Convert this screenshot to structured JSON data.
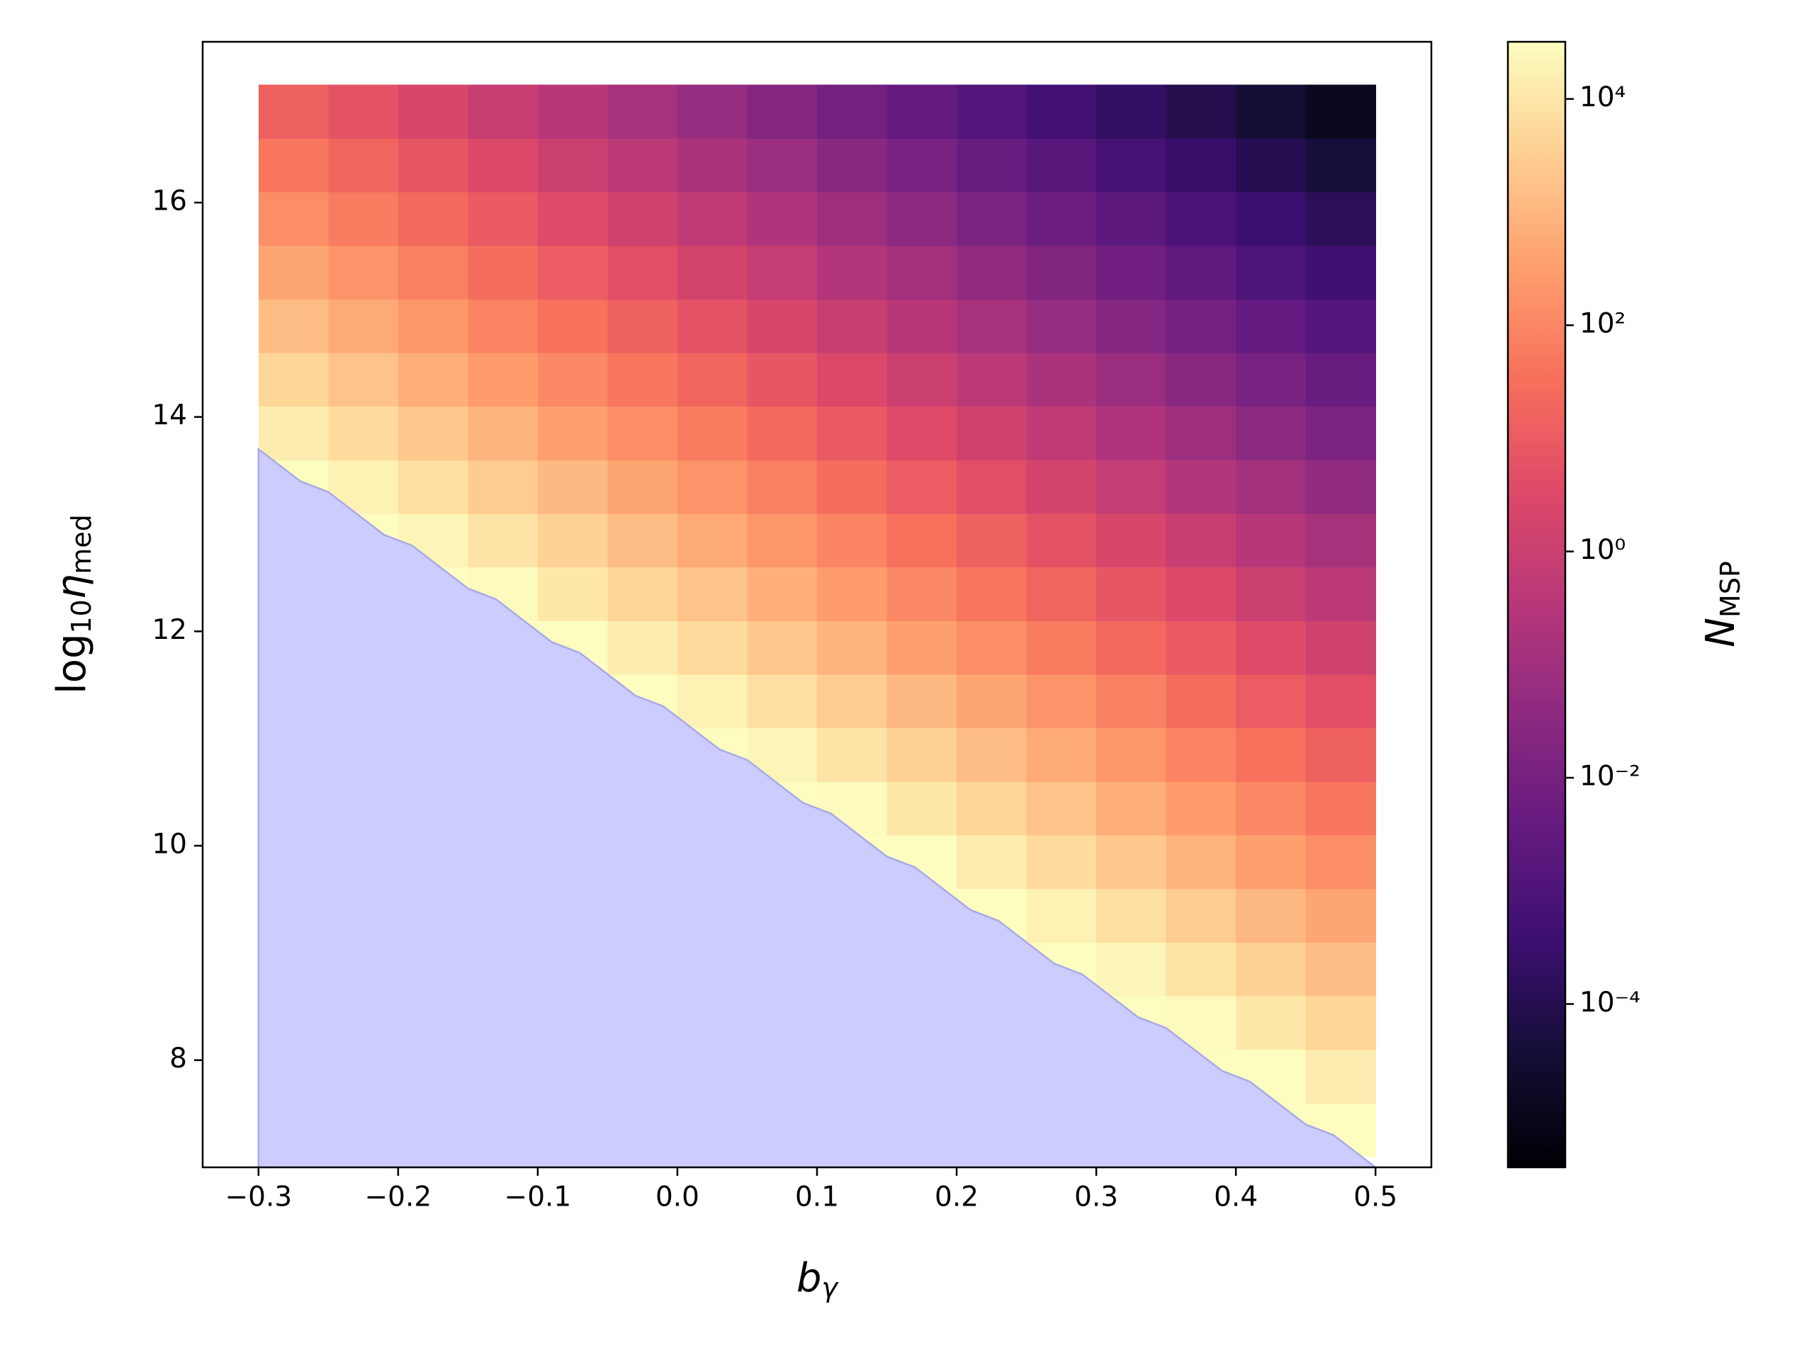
{
  "chart_data": {
    "type": "heatmap",
    "xlabel": {
      "symbol": "b",
      "subscript": "γ"
    },
    "ylabel": {
      "prefix": "log",
      "prefix_subscript": "10",
      "symbol": "η",
      "subscript": "med"
    },
    "colorbar_label": {
      "symbol": "N",
      "subscript": "MSP"
    },
    "colormap": "magma",
    "log_color_scale": true,
    "clim": [
      3.6e-06,
      32000.0
    ],
    "colorbar_ticks": [
      {
        "value": 0.0001,
        "label": "10⁻⁴"
      },
      {
        "value": 0.01,
        "label": "10⁻²"
      },
      {
        "value": 1,
        "label": "10⁰"
      },
      {
        "value": 100,
        "label": "10²"
      },
      {
        "value": 10000,
        "label": "10⁴"
      }
    ],
    "xlim": [
      -0.34,
      0.54
    ],
    "ylim": [
      7.0,
      17.5
    ],
    "xticks": [
      {
        "value": -0.3,
        "label": "−0.3"
      },
      {
        "value": -0.2,
        "label": "−0.2"
      },
      {
        "value": -0.1,
        "label": "−0.1"
      },
      {
        "value": 0,
        "label": "0.0"
      },
      0.1,
      0.2,
      0.3,
      0.4,
      0.5
    ],
    "yticks": [
      8,
      10,
      12,
      14,
      16
    ],
    "x_edges": [
      -0.3,
      -0.25,
      -0.2,
      -0.15,
      -0.1,
      -0.05,
      0,
      0.05,
      0.1,
      0.15,
      0.2,
      0.25,
      0.3,
      0.35,
      0.4,
      0.45,
      0.5
    ],
    "y_edges": [
      7.1,
      7.6,
      8.1,
      8.6,
      9.1,
      9.6,
      10.1,
      10.6,
      11.1,
      11.6,
      12.1,
      12.6,
      13.1,
      13.6,
      14.1,
      14.6,
      15.1,
      15.6,
      16.1,
      16.6,
      17.1
    ],
    "z": [
      [
        null,
        null,
        null,
        null,
        null,
        null,
        null,
        null,
        null,
        null,
        null,
        null,
        null,
        null,
        110000.0,
        45000.0
      ],
      [
        null,
        null,
        null,
        null,
        null,
        null,
        null,
        null,
        null,
        null,
        null,
        null,
        null,
        89000.0,
        35000.0,
        14000.0
      ],
      [
        null,
        null,
        null,
        null,
        null,
        null,
        null,
        null,
        null,
        null,
        null,
        null,
        71000.0,
        28000.0,
        11000.0,
        4500.0
      ],
      [
        null,
        null,
        null,
        null,
        null,
        null,
        null,
        null,
        null,
        null,
        null,
        56000.0,
        22000.0,
        8900.0,
        3500.0,
        1400.0
      ],
      [
        null,
        null,
        null,
        null,
        null,
        null,
        null,
        null,
        null,
        110000.0,
        45000.0,
        18000.0,
        7100.0,
        2800.0,
        1100.0,
        450
      ],
      [
        null,
        null,
        null,
        null,
        null,
        null,
        null,
        null,
        89000.0,
        35000.0,
        14000.0,
        5600.0,
        2200.0,
        890,
        350,
        140
      ],
      [
        null,
        null,
        null,
        null,
        null,
        null,
        null,
        71000.0,
        28000.0,
        11000.0,
        4500.0,
        1800.0,
        710,
        280,
        110,
        45
      ],
      [
        null,
        null,
        null,
        null,
        null,
        null,
        56000.0,
        22000.0,
        8900.0,
        3500.0,
        1400.0,
        560,
        220,
        89,
        35,
        14
      ],
      [
        null,
        null,
        null,
        null,
        110000.0,
        45000.0,
        18000.0,
        7100.0,
        2800.0,
        1100.0,
        450,
        180,
        71,
        28,
        11,
        4.5
      ],
      [
        null,
        null,
        null,
        89000.0,
        35000.0,
        14000.0,
        5600.0,
        2200.0,
        890,
        350,
        140,
        56,
        22,
        8.9,
        3.5,
        1.4
      ],
      [
        null,
        null,
        71000.0,
        28000.0,
        11000.0,
        4500.0,
        1800.0,
        710,
        280,
        110,
        45,
        18,
        7.1,
        2.8,
        1.1,
        0.45
      ],
      [
        null,
        56000.0,
        22000.0,
        8900.0,
        3500.0,
        1400.0,
        560,
        220,
        89,
        35,
        14,
        5.6,
        2.2,
        0.89,
        0.35,
        0.14
      ],
      [
        45000.0,
        18000.0,
        7100.0,
        2800.0,
        1100.0,
        450,
        180,
        71,
        28,
        11,
        4.5,
        1.8,
        0.71,
        0.28,
        0.11,
        0.045
      ],
      [
        14000.0,
        5600.0,
        2200.0,
        890,
        350,
        140,
        56,
        22,
        8.9,
        3.5,
        1.4,
        0.56,
        0.22,
        0.089,
        0.035,
        0.014
      ],
      [
        4500.0,
        1800.0,
        710,
        280,
        110,
        45,
        18,
        7.1,
        2.8,
        1.1,
        0.45,
        0.18,
        0.071,
        0.028,
        0.011,
        0.0045
      ],
      [
        1400.0,
        560,
        220,
        89,
        35,
        14,
        5.6,
        2.2,
        0.89,
        0.35,
        0.14,
        0.056,
        0.022,
        0.0089,
        0.0035,
        0.0014
      ],
      [
        450,
        180,
        71,
        28,
        11,
        4.5,
        1.8,
        0.71,
        0.28,
        0.11,
        0.045,
        0.018,
        0.0071,
        0.0028,
        0.0011,
        0.00045
      ],
      [
        140,
        56,
        22,
        8.9,
        3.5,
        1.4,
        0.56,
        0.22,
        0.089,
        0.035,
        0.014,
        0.0056,
        0.0022,
        0.00089,
        0.00035,
        0.00014
      ],
      [
        45,
        18,
        7.1,
        2.8,
        1.1,
        0.45,
        0.18,
        0.071,
        0.028,
        0.011,
        0.0045,
        0.0018,
        0.00071,
        0.00028,
        0.00011,
        4.5e-05
      ],
      [
        14,
        5.6,
        2.2,
        0.89,
        0.35,
        0.14,
        0.056,
        0.022,
        0.0089,
        0.0035,
        0.0014,
        0.00056,
        0.00022,
        8.9e-05,
        3.5e-05,
        1.4e-05
      ]
    ],
    "fill_region": {
      "color": "#ccccff",
      "x": [
        -0.3,
        -0.27,
        -0.25,
        -0.21,
        -0.19,
        -0.15,
        -0.13,
        -0.09,
        -0.07,
        -0.03,
        -0.01,
        0.03,
        0.05,
        0.09,
        0.11,
        0.15,
        0.17,
        0.21,
        0.23,
        0.27,
        0.29,
        0.33,
        0.35,
        0.39,
        0.41,
        0.45,
        0.47,
        0.5
      ],
      "y": [
        13.7,
        13.4,
        13.3,
        12.9,
        12.8,
        12.4,
        12.3,
        11.9,
        11.8,
        11.4,
        11.3,
        10.9,
        10.8,
        10.4,
        10.3,
        9.9,
        9.8,
        9.4,
        9.3,
        8.9,
        8.8,
        8.4,
        8.3,
        7.9,
        7.8,
        7.4,
        7.3,
        7.0
      ]
    }
  }
}
